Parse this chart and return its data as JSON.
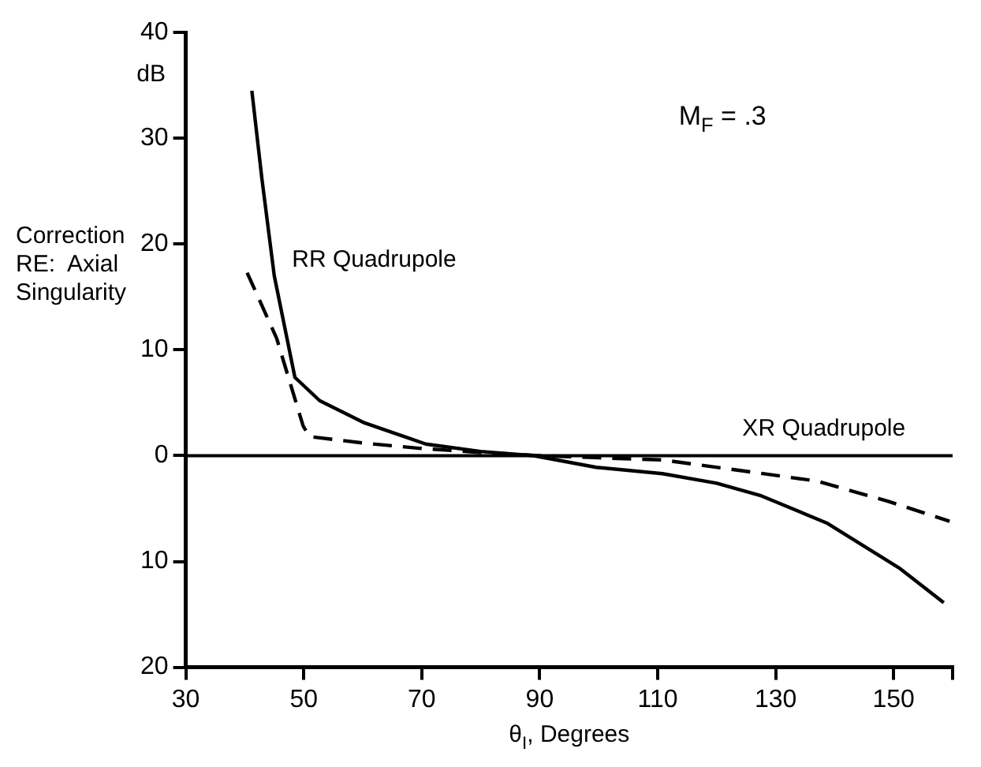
{
  "chart_data": {
    "type": "line",
    "xlabel": "θ$_{I}$, Degrees",
    "ylabel": "Correction\nRE:  Axial\nSingularity",
    "annotations": [
      "dB",
      "M$_{F}$ = .3",
      "RR Quadrupole",
      "XR Quadrupole"
    ],
    "series": [
      {
        "color": "#000000",
        "line_style": "solid",
        "x": [
          41.2,
          42.9,
          45,
          48.5,
          52.7,
          60.3,
          70.7,
          80,
          89,
          99.6,
          110.8,
          120,
          127.6,
          138.8,
          150.9,
          158.5
        ],
        "values": [
          34.5,
          26.2,
          17,
          7.4,
          5.2,
          3.1,
          1.1,
          0.4,
          0,
          -1.1,
          -1.7,
          -2.6,
          -3.8,
          -6.4,
          -10.6,
          -13.9
        ]
      },
      {
        "color": "#000000",
        "line_style": "dashed",
        "x": [
          40.4,
          45.4,
          49.9,
          51,
          60,
          69.6,
          80,
          90,
          100,
          110.8,
          124,
          137,
          149,
          159.5
        ],
        "values": [
          17.3,
          11.1,
          2.8,
          1.8,
          1.2,
          0.7,
          0.3,
          0,
          -0.2,
          -0.4,
          -1.4,
          -2.4,
          -4.3,
          -6.2
        ]
      }
    ],
    "ref_lines": [
      {
        "axis": "y",
        "value": 0,
        "color": "#000000",
        "line_style": "solid"
      }
    ],
    "xlim": [
      30,
      160
    ],
    "xticks": [
      30,
      50,
      70,
      90,
      110,
      130,
      150,
      {
        "value": 160,
        "label": null
      }
    ],
    "ylim": [
      -20,
      40
    ],
    "yticks": [
      {
        "value": -20,
        "label": "20"
      },
      {
        "value": -10,
        "label": "10"
      },
      0,
      10,
      20,
      30,
      40
    ],
    "grid": false,
    "legend": false,
    "marker": "none"
  }
}
